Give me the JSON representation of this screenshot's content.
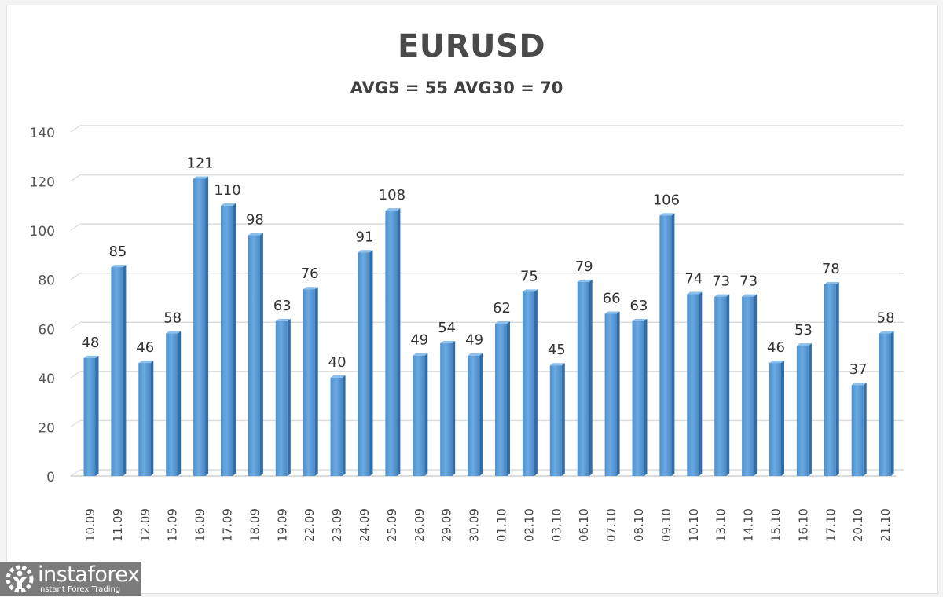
{
  "header": {
    "title": "EURUSD",
    "subtitle": "AVG5 = 55 AVG30 = 70"
  },
  "branding": {
    "name": "instaforex",
    "tagline": "Instant Forex Trading"
  },
  "colors": {
    "bar": "#5b9bd5",
    "bar_dark": "#2e6da8",
    "grid": "#d9d9d9",
    "text": "#404040"
  },
  "chart_data": {
    "type": "bar",
    "title": "EURUSD",
    "subtitle": "AVG5 = 55 AVG30 = 70",
    "xlabel": "",
    "ylabel": "",
    "ylim": [
      0,
      140
    ],
    "yticks": [
      0,
      20,
      40,
      60,
      80,
      100,
      120,
      140
    ],
    "grid": true,
    "legend": "none",
    "data_labels": true,
    "categories": [
      "10.09",
      "11.09",
      "12.09",
      "15.09",
      "16.09",
      "17.09",
      "18.09",
      "19.09",
      "22.09",
      "23.09",
      "24.09",
      "25.09",
      "26.09",
      "29.09",
      "30.09",
      "01.10",
      "02.10",
      "03.10",
      "06.10",
      "07.10",
      "08.10",
      "09.10",
      "10.10",
      "13.10",
      "14.10",
      "15.10",
      "16.10",
      "17.10",
      "20.10",
      "21.10"
    ],
    "values": [
      48,
      85,
      46,
      58,
      121,
      110,
      98,
      63,
      76,
      40,
      91,
      108,
      49,
      54,
      49,
      62,
      75,
      45,
      79,
      66,
      63,
      106,
      74,
      73,
      73,
      46,
      53,
      78,
      37,
      58
    ]
  }
}
